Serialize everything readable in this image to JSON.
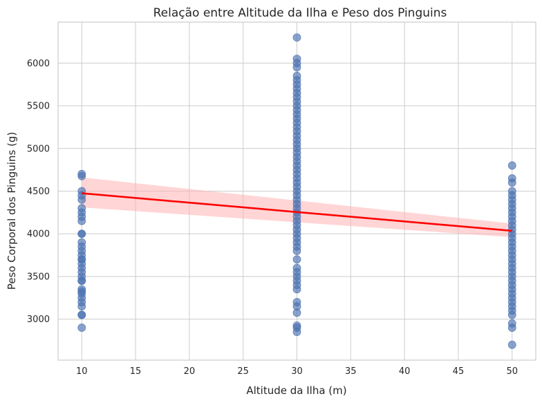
{
  "chart_data": {
    "type": "scatter",
    "title": "Relação entre Altitude da Ilha e Peso dos Pinguins",
    "xlabel": "Altitude da Ilha (m)",
    "ylabel": "Peso Corporal dos Pinguins (g)",
    "xlim": [
      7.8,
      52.2
    ],
    "ylim": [
      2520,
      6480
    ],
    "xticks": [
      10,
      15,
      20,
      25,
      30,
      35,
      40,
      45,
      50
    ],
    "yticks": [
      3000,
      3500,
      4000,
      4500,
      5000,
      5500,
      6000
    ],
    "grid": true,
    "colors": {
      "points": "#4c72b0",
      "line": "#ff0000",
      "band": "#ffb3b3"
    },
    "series": [
      {
        "kind": "points",
        "groups": [
          {
            "x": 10,
            "y": [
              4700,
              4675,
              4500,
              4450,
              4400,
              4300,
              4250,
              4200,
              4150,
              4000,
              4000,
              3900,
              3850,
              3800,
              3750,
              3700,
              3700,
              3650,
              3600,
              3550,
              3500,
              3450,
              3450,
              3350,
              3325,
              3300,
              3250,
              3200,
              3150,
              3050,
              3050,
              2900
            ]
          },
          {
            "x": 30,
            "y": [
              6300,
              6050,
              6000,
              5950,
              5850,
              5800,
              5750,
              5700,
              5650,
              5600,
              5550,
              5500,
              5450,
              5400,
              5350,
              5300,
              5250,
              5200,
              5150,
              5100,
              5050,
              5000,
              4950,
              4900,
              4850,
              4800,
              4750,
              4700,
              4650,
              4600,
              4550,
              4500,
              4450,
              4400,
              4350,
              4300,
              4250,
              4200,
              4150,
              4100,
              4050,
              4000,
              3950,
              3900,
              3850,
              3800,
              3700,
              3600,
              3550,
              3500,
              3450,
              3400,
              3350,
              3200,
              3150,
              3075,
              2925,
              2900,
              2850
            ]
          },
          {
            "x": 50,
            "y": [
              4800,
              4650,
              4600,
              4500,
              4450,
              4400,
              4350,
              4300,
              4250,
              4200,
              4150,
              4100,
              4050,
              4000,
              3950,
              3900,
              3850,
              3800,
              3750,
              3700,
              3650,
              3600,
              3550,
              3500,
              3450,
              3400,
              3350,
              3300,
              3250,
              3200,
              3150,
              3100,
              3050,
              2950,
              2900,
              2700
            ]
          }
        ]
      },
      {
        "kind": "regression",
        "x": [
          10,
          50
        ],
        "y": [
          4475,
          4035
        ],
        "ci_lower": [
          4310,
          3960
        ],
        "ci_upper": [
          4660,
          4120
        ]
      }
    ]
  }
}
